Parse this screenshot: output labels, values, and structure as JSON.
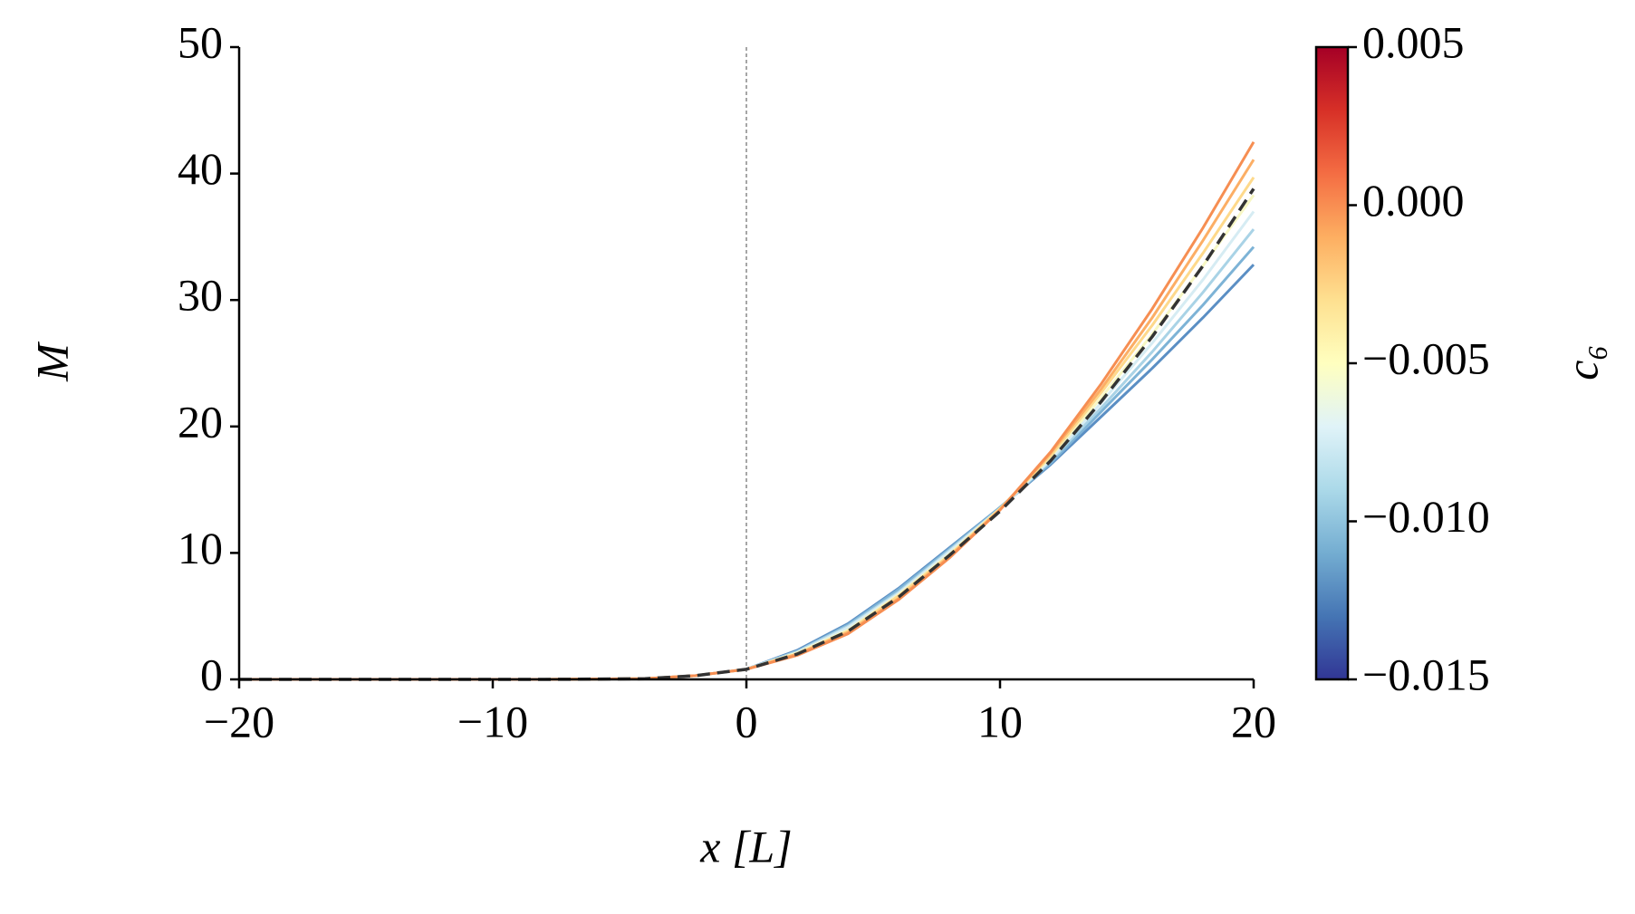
{
  "chart_data": {
    "type": "line",
    "xlabel": "x [L]",
    "ylabel": "M",
    "x": [
      -20,
      -16,
      -12,
      -8,
      -4,
      -2,
      0,
      2,
      4,
      6,
      8,
      10,
      12,
      14,
      16,
      18,
      20
    ],
    "series": [
      {
        "color": "#5b8fc4",
        "values": [
          0,
          0,
          0,
          0,
          0.05,
          0.3,
          0.8,
          2.3,
          4.4,
          7.2,
          10.4,
          13.6,
          17.0,
          20.8,
          24.6,
          28.6,
          32.8
        ]
      },
      {
        "color": "#7db3d6",
        "values": [
          0,
          0,
          0,
          0,
          0.05,
          0.3,
          0.8,
          2.2,
          4.3,
          7.1,
          10.3,
          13.6,
          17.1,
          21.2,
          25.3,
          29.6,
          34.2
        ]
      },
      {
        "color": "#a9d3e6",
        "values": [
          0,
          0,
          0,
          0,
          0.05,
          0.3,
          0.8,
          2.2,
          4.2,
          6.9,
          10.2,
          13.5,
          17.3,
          21.5,
          25.9,
          30.6,
          35.6
        ]
      },
      {
        "color": "#d6ecf3",
        "values": [
          0,
          0,
          0,
          0,
          0.05,
          0.3,
          0.8,
          2.1,
          4.1,
          6.8,
          10.1,
          13.5,
          17.4,
          21.9,
          26.6,
          31.6,
          37.0
        ]
      },
      {
        "color": "#f7f7c4",
        "values": [
          0,
          0,
          0,
          0,
          0.05,
          0.3,
          0.8,
          2.1,
          3.9,
          6.7,
          9.9,
          13.5,
          17.6,
          22.3,
          27.3,
          32.7,
          38.3
        ]
      },
      {
        "color": "#fed98b",
        "values": [
          0,
          0,
          0,
          0,
          0.05,
          0.3,
          0.8,
          2.0,
          3.8,
          6.6,
          9.8,
          13.5,
          17.7,
          22.7,
          28.0,
          33.7,
          39.7
        ]
      },
      {
        "color": "#fcae65",
        "values": [
          0,
          0,
          0,
          0,
          0.05,
          0.3,
          0.8,
          2.0,
          3.7,
          6.4,
          9.7,
          13.4,
          17.9,
          23.0,
          28.6,
          34.7,
          41.1
        ]
      },
      {
        "color": "#f68e52",
        "values": [
          0,
          0,
          0,
          0,
          0.05,
          0.3,
          0.8,
          1.9,
          3.6,
          6.3,
          9.6,
          13.4,
          18.0,
          23.4,
          29.3,
          35.7,
          42.5
        ]
      },
      {
        "color": "#333333",
        "dashed": true,
        "values": [
          0,
          0,
          0,
          0,
          0.05,
          0.3,
          0.8,
          2.0,
          3.8,
          6.5,
          9.8,
          13.3,
          17.3,
          22.0,
          27.1,
          32.7,
          38.8
        ]
      }
    ],
    "xlim": [
      -20,
      20
    ],
    "xticks": [
      {
        "value": -20,
        "label": "−20"
      },
      {
        "value": -10,
        "label": "−10"
      },
      0,
      10,
      20
    ],
    "ylim": [
      0,
      50
    ],
    "yticks": [
      0,
      10,
      20,
      30,
      40,
      50
    ],
    "vline": 0,
    "colorbar": {
      "label": "c₆",
      "lim": [
        -0.015,
        0.005
      ],
      "colors": [
        "#313695",
        "#4575b4",
        "#74add1",
        "#abd9e9",
        "#e0f3f8",
        "#ffffbf",
        "#fee090",
        "#fdae61",
        "#f46d43",
        "#d73027",
        "#a50026"
      ],
      "ticks": [
        {
          "value": 0.005,
          "label": "0.005"
        },
        {
          "value": 0,
          "label": "0.000"
        },
        {
          "value": -0.005,
          "label": "−0.005"
        },
        {
          "value": -0.01,
          "label": "−0.010"
        },
        {
          "value": -0.015,
          "label": "−0.015"
        }
      ]
    }
  }
}
